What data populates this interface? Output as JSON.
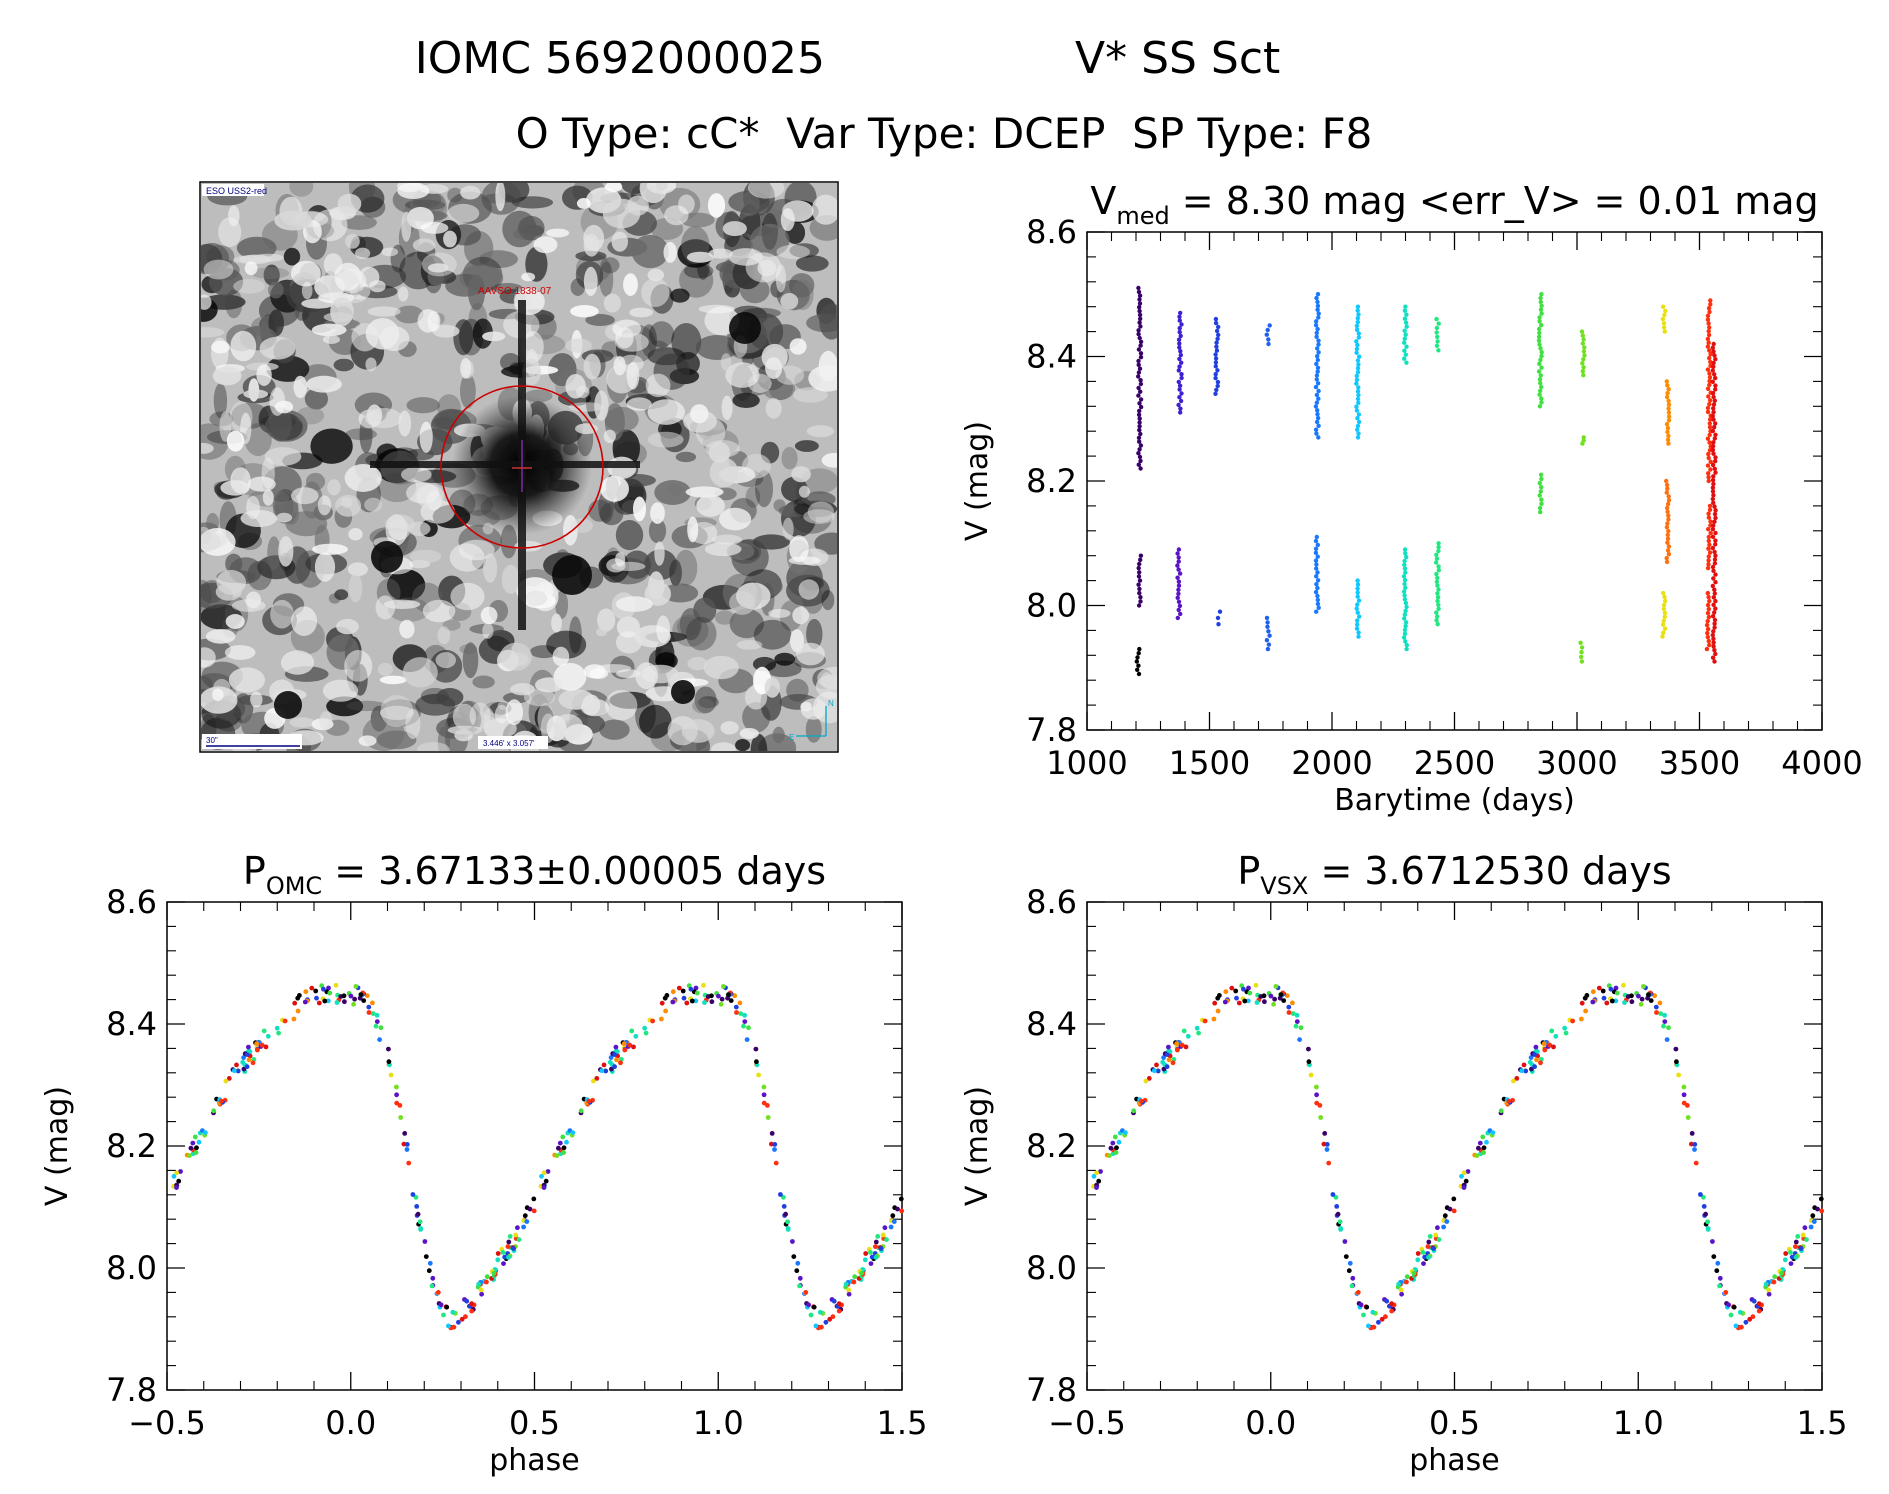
{
  "header": {
    "line1_id": "IOMC 5692000025",
    "line1_name": "V* SS Sct",
    "line2": "O Type: cC*  Var Type: DCEP  SP Type: F8"
  },
  "image_panel": {
    "survey_label": "ESO USS2-red",
    "object_label": "AAVSO 1838-07",
    "scale_label": "30\"",
    "size_label": "3.446' x 3.057'",
    "compass_n": "N",
    "compass_e": "E",
    "colors": {
      "circle": "#cc0000",
      "labels": "#000080",
      "compass": "#00aacc"
    }
  },
  "chart_data": [
    {
      "type": "scatter",
      "id": "lightcurve",
      "title_main": "V",
      "title_sub": "med",
      "title_rest": " = 8.30 mag <err_V> = 0.01 mag",
      "xlabel": "Barytime (days)",
      "ylabel": "V (mag)",
      "xlim": [
        1000,
        4000
      ],
      "ylim": [
        8.6,
        7.8
      ],
      "y_inverted": true,
      "xticks": [
        "1000",
        "1500",
        "2000",
        "2500",
        "3000",
        "3500",
        "4000"
      ],
      "yticks": [
        "7.8",
        "8.0",
        "8.2",
        "8.4",
        "8.6"
      ],
      "groups": [
        {
          "x": 1208,
          "color": "#000000",
          "ymin": 7.89,
          "ymax": 7.93
        },
        {
          "x": 1215,
          "color": "#3a006a",
          "ymin": 8.0,
          "ymax": 8.08
        },
        {
          "x": 1215,
          "color": "#3a006a",
          "ymin": 8.22,
          "ymax": 8.51
        },
        {
          "x": 1375,
          "color": "#5a14c8",
          "ymin": 7.98,
          "ymax": 8.09
        },
        {
          "x": 1380,
          "color": "#4020d0",
          "ymin": 8.31,
          "ymax": 8.47
        },
        {
          "x": 1540,
          "color": "#2040e0",
          "ymin": 7.97,
          "ymax": 7.99
        },
        {
          "x": 1530,
          "color": "#2040e0",
          "ymin": 8.34,
          "ymax": 8.46
        },
        {
          "x": 1740,
          "color": "#2060f0",
          "ymin": 7.93,
          "ymax": 7.98
        },
        {
          "x": 1740,
          "color": "#2060f0",
          "ymin": 8.42,
          "ymax": 8.45
        },
        {
          "x": 1940,
          "color": "#1878ff",
          "ymin": 7.99,
          "ymax": 8.11
        },
        {
          "x": 1940,
          "color": "#1878ff",
          "ymin": 8.27,
          "ymax": 8.5
        },
        {
          "x": 2105,
          "color": "#10c8ff",
          "ymin": 7.95,
          "ymax": 8.04
        },
        {
          "x": 2105,
          "color": "#10c8ff",
          "ymin": 8.27,
          "ymax": 8.48
        },
        {
          "x": 2300,
          "color": "#10e0c0",
          "ymin": 7.93,
          "ymax": 8.09
        },
        {
          "x": 2300,
          "color": "#10e0c0",
          "ymin": 8.39,
          "ymax": 8.48
        },
        {
          "x": 2430,
          "color": "#20e880",
          "ymin": 7.97,
          "ymax": 8.1
        },
        {
          "x": 2430,
          "color": "#20e880",
          "ymin": 8.41,
          "ymax": 8.46
        },
        {
          "x": 2850,
          "color": "#40e040",
          "ymin": 8.15,
          "ymax": 8.21
        },
        {
          "x": 2850,
          "color": "#40e040",
          "ymin": 8.32,
          "ymax": 8.5
        },
        {
          "x": 3020,
          "color": "#70e020",
          "ymin": 7.91,
          "ymax": 7.94
        },
        {
          "x": 3025,
          "color": "#70e020",
          "ymin": 8.26,
          "ymax": 8.27
        },
        {
          "x": 3025,
          "color": "#70e020",
          "ymin": 8.37,
          "ymax": 8.44
        },
        {
          "x": 3355,
          "color": "#e8e010",
          "ymin": 7.95,
          "ymax": 8.02
        },
        {
          "x": 3355,
          "color": "#e8e010",
          "ymin": 8.44,
          "ymax": 8.48
        },
        {
          "x": 3370,
          "color": "#ff7010",
          "ymin": 8.07,
          "ymax": 8.2
        },
        {
          "x": 3370,
          "color": "#ff8c00",
          "ymin": 8.26,
          "ymax": 8.36
        },
        {
          "x": 3535,
          "color": "#ff3010",
          "ymin": 7.93,
          "ymax": 8.02
        },
        {
          "x": 3540,
          "color": "#ff3010",
          "ymin": 8.06,
          "ymax": 8.16
        },
        {
          "x": 3540,
          "color": "#ff3010",
          "ymin": 8.2,
          "ymax": 8.49
        },
        {
          "x": 3560,
          "color": "#e01010",
          "ymin": 7.91,
          "ymax": 8.42
        }
      ]
    },
    {
      "type": "scatter",
      "id": "phase_omc",
      "title_main": "P",
      "title_sub": "OMC",
      "title_rest": " = 3.67133±0.00005 days",
      "xlabel": "phase",
      "ylabel": "V (mag)",
      "xlim": [
        -0.5,
        1.5
      ],
      "ylim": [
        8.6,
        7.8
      ],
      "y_inverted": true,
      "xticks": [
        "−0.5",
        "0.0",
        "0.5",
        "1.0",
        "1.5"
      ],
      "yticks": [
        "7.8",
        "8.0",
        "8.2",
        "8.4",
        "8.6"
      ],
      "curve": {
        "phase": [
          0.0,
          0.05,
          0.1,
          0.15,
          0.2,
          0.25,
          0.28,
          0.35,
          0.45,
          0.55,
          0.6,
          0.7,
          0.8,
          0.9,
          0.95,
          1.0
        ],
        "v": [
          8.45,
          8.43,
          8.36,
          8.2,
          8.03,
          7.93,
          7.91,
          7.96,
          8.05,
          8.17,
          8.23,
          8.33,
          8.4,
          8.45,
          8.45,
          8.45
        ]
      }
    },
    {
      "type": "scatter",
      "id": "phase_vsx",
      "title_main": "P",
      "title_sub": "VSX",
      "title_rest": " = 3.6712530 days",
      "xlabel": "phase",
      "ylabel": "V (mag)",
      "xlim": [
        -0.5,
        1.5
      ],
      "ylim": [
        8.6,
        7.8
      ],
      "y_inverted": true,
      "xticks": [
        "−0.5",
        "0.0",
        "0.5",
        "1.0",
        "1.5"
      ],
      "yticks": [
        "7.8",
        "8.0",
        "8.2",
        "8.4",
        "8.6"
      ],
      "curve": {
        "phase": [
          0.0,
          0.05,
          0.1,
          0.15,
          0.2,
          0.25,
          0.28,
          0.35,
          0.45,
          0.55,
          0.6,
          0.7,
          0.8,
          0.9,
          0.95,
          1.0
        ],
        "v": [
          8.45,
          8.43,
          8.36,
          8.2,
          8.03,
          7.93,
          7.91,
          7.96,
          8.05,
          8.17,
          8.23,
          8.33,
          8.4,
          8.45,
          8.45,
          8.45
        ]
      }
    }
  ],
  "palette": [
    "#000000",
    "#3a006a",
    "#5a14c8",
    "#2040e0",
    "#1878ff",
    "#10c8ff",
    "#10e0c0",
    "#20e880",
    "#40e040",
    "#70e020",
    "#e8e010",
    "#ff8c00",
    "#ff3010",
    "#e01010"
  ]
}
